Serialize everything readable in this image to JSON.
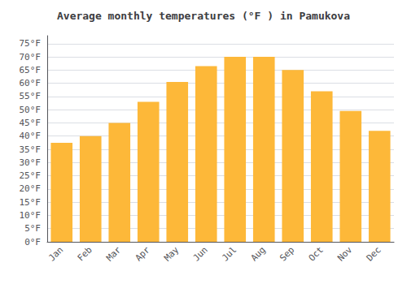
{
  "chart_data": {
    "type": "bar",
    "title": "Average monthly temperatures (°F ) in Pamukova",
    "categories": [
      "Jan",
      "Feb",
      "Mar",
      "Apr",
      "May",
      "Jun",
      "Jul",
      "Aug",
      "Sep",
      "Oct",
      "Nov",
      "Dec"
    ],
    "values": [
      37.5,
      40,
      45,
      53,
      60.5,
      66.5,
      70,
      70,
      65,
      57,
      49.5,
      42
    ],
    "color": "#FDB839",
    "ylim": [
      0,
      78
    ],
    "yticks": [
      {
        "value": 0,
        "label": "0°F"
      },
      {
        "value": 5,
        "label": "5°F"
      },
      {
        "value": 10,
        "label": "10°F"
      },
      {
        "value": 15,
        "label": "15°F"
      },
      {
        "value": 20,
        "label": "20°F"
      },
      {
        "value": 25,
        "label": "25°F"
      },
      {
        "value": 30,
        "label": "30°F"
      },
      {
        "value": 35,
        "label": "35°F"
      },
      {
        "value": 40,
        "label": "40°F"
      },
      {
        "value": 45,
        "label": "45°F"
      },
      {
        "value": 50,
        "label": "50°F"
      },
      {
        "value": 55,
        "label": "55°F"
      },
      {
        "value": 60,
        "label": "60°F"
      },
      {
        "value": 65,
        "label": "65°F"
      },
      {
        "value": 70,
        "label": "70°F"
      },
      {
        "value": 75,
        "label": "75°F"
      }
    ],
    "grid": true
  }
}
